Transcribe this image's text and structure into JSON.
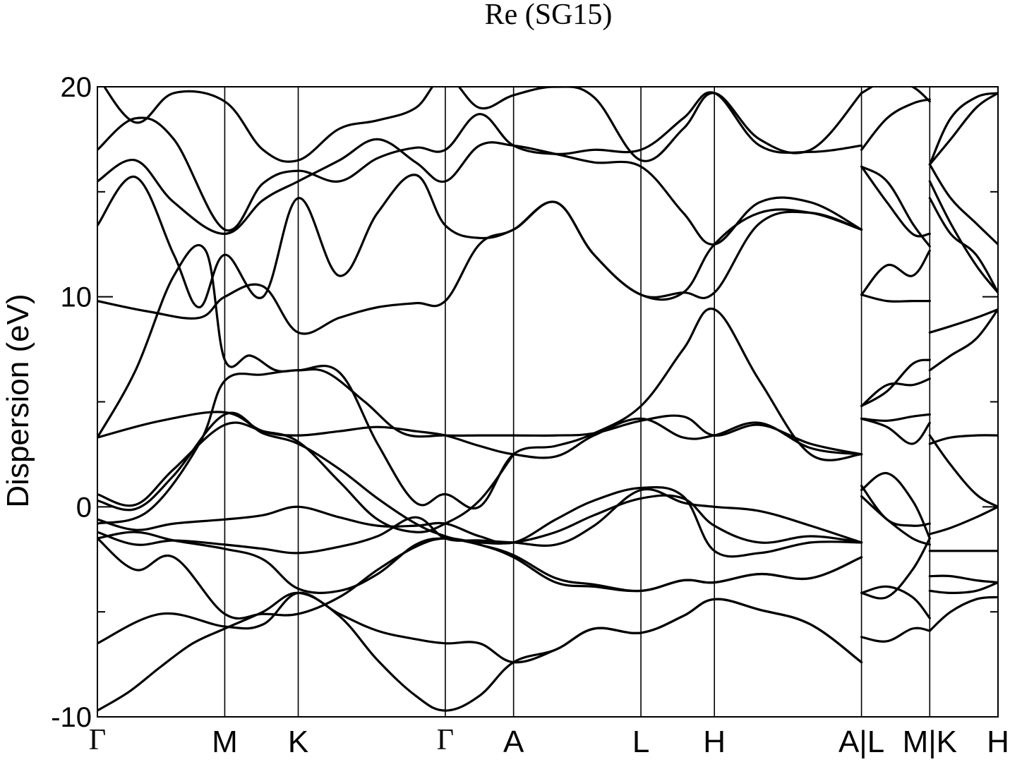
{
  "chart_data": {
    "type": "line",
    "title": "Re (SG15)",
    "ylabel": "Dispersion (eV)",
    "xlabel": "",
    "ylim": [
      -10,
      20
    ],
    "y_ticks": [
      -10,
      0,
      10,
      20
    ],
    "y_minor_ticks": [
      -5,
      5,
      15
    ],
    "grid": false,
    "legend": "none",
    "kpath": [
      {
        "label": "Γ",
        "x": 0.0
      },
      {
        "label": "M",
        "x": 1.0
      },
      {
        "label": "K",
        "x": 1.577
      },
      {
        "label": "Γ",
        "x": 2.732
      },
      {
        "label": "A",
        "x": 3.268
      },
      {
        "label": "L",
        "x": 4.268
      },
      {
        "label": "H",
        "x": 4.845
      },
      {
        "label": "A|L",
        "x": 6.0
      },
      {
        "label": "M|K",
        "x": 6.536
      },
      {
        "label": "H",
        "x": 7.072
      }
    ],
    "xlim": [
      0,
      7.072
    ],
    "series": [
      {
        "x": [
          0,
          0.25,
          0.5,
          0.75,
          1.0,
          1.3,
          1.577,
          1.9,
          2.2,
          2.5,
          2.732,
          3.0,
          3.268,
          3.6,
          3.9,
          4.268,
          4.6,
          4.845,
          5.2,
          5.6,
          6.0
        ],
        "values": [
          -9.7,
          -8.8,
          -7.6,
          -6.5,
          -5.8,
          -5.0,
          -4.1,
          -5.2,
          -7.3,
          -9.0,
          -9.7,
          -9.0,
          -7.4,
          -6.8,
          -5.8,
          -6.0,
          -5.2,
          -4.4,
          -4.9,
          -5.6,
          -7.4
        ]
      },
      {
        "x": [
          0,
          0.5,
          1.0,
          1.3,
          1.577,
          1.9,
          2.2,
          2.5,
          2.732,
          3.0,
          3.268,
          3.6,
          3.9,
          4.268,
          4.6,
          4.845,
          5.2,
          5.6,
          6.0
        ],
        "values": [
          -6.5,
          -5.1,
          -5.7,
          -5.6,
          -4.1,
          -5.1,
          -5.9,
          -6.3,
          -6.5,
          -6.5,
          -7.4,
          -6.8,
          -5.8,
          -6.0,
          -5.2,
          -4.4,
          -4.9,
          -5.6,
          -7.4
        ]
      },
      {
        "x": [
          0,
          0.3,
          0.6,
          1.0,
          1.3,
          1.577,
          1.9,
          2.2,
          2.5,
          2.732,
          3.0,
          3.268,
          3.6,
          3.9,
          4.268,
          4.6,
          4.845,
          5.2,
          5.6,
          6.0
        ],
        "values": [
          -1.5,
          -3.0,
          -2.4,
          -5.1,
          -5.1,
          -5.1,
          -4.3,
          -3.0,
          -1.9,
          -1.5,
          -1.8,
          -2.4,
          -3.6,
          -3.8,
          -4.0,
          -3.5,
          -3.6,
          -3.2,
          -3.4,
          -2.4
        ]
      },
      {
        "x": [
          0,
          0.3,
          0.6,
          1.0,
          1.3,
          1.577,
          1.9,
          2.2,
          2.5,
          2.732,
          3.0,
          3.268,
          3.6,
          3.9,
          4.268,
          4.6,
          4.845,
          5.2,
          5.6,
          6.0
        ],
        "values": [
          -1.5,
          -1.2,
          -1.6,
          -2.0,
          -2.5,
          -3.9,
          -4.0,
          -3.2,
          -1.8,
          -1.5,
          -1.7,
          -1.7,
          -1.2,
          -0.4,
          0.4,
          0.4,
          -0.9,
          -1.7,
          -1.4,
          -1.7
        ]
      },
      {
        "x": [
          0,
          0.3,
          0.6,
          1.0,
          1.3,
          1.577,
          1.9,
          2.2,
          2.5,
          2.732,
          3.0,
          3.268,
          3.6,
          3.9,
          4.268,
          4.6,
          4.845,
          5.2,
          5.6,
          6.0
        ],
        "values": [
          -1.2,
          -1.8,
          -1.6,
          -1.8,
          -2.0,
          -2.2,
          -1.9,
          -1.4,
          -0.5,
          -1.5,
          -1.6,
          -1.7,
          -1.8,
          -0.9,
          0.8,
          0.2,
          0.0,
          -0.2,
          -0.9,
          -1.7
        ]
      },
      {
        "x": [
          0,
          0.3,
          0.6,
          1.0,
          1.3,
          1.577,
          1.9,
          2.2,
          2.5,
          2.732,
          3.0,
          3.268,
          3.6,
          3.9,
          4.268,
          4.6,
          4.845,
          5.2,
          5.6,
          6.0
        ],
        "values": [
          -0.6,
          -1.1,
          -0.8,
          -0.6,
          -0.4,
          0.0,
          -0.5,
          -0.9,
          -0.9,
          -0.8,
          -1.4,
          -1.7,
          -0.6,
          0.3,
          0.9,
          0.5,
          -2.1,
          -2.2,
          -1.7,
          -1.7
        ]
      },
      {
        "x": [
          0,
          0.3,
          0.6,
          1.0,
          1.3,
          1.577,
          1.9,
          2.2,
          2.5,
          2.732,
          3.0,
          3.268,
          3.6,
          3.9,
          4.268,
          4.6,
          4.845,
          5.2,
          5.6,
          6.0
        ],
        "values": [
          0.3,
          -0.1,
          1.5,
          4.4,
          3.5,
          3.0,
          1.8,
          0.4,
          -0.8,
          -1.4,
          -1.8,
          -2.3,
          -3.4,
          -3.7,
          -4.0,
          -3.5,
          -3.6,
          -3.2,
          -3.4,
          -2.4
        ]
      },
      {
        "x": [
          0,
          0.3,
          0.6,
          1.0,
          1.3,
          1.577,
          1.9,
          2.2,
          2.5,
          2.732,
          3.0,
          3.268
        ],
        "values": [
          0.6,
          0.1,
          1.8,
          3.9,
          3.6,
          3.1,
          1.2,
          -0.6,
          -1.2,
          -0.8,
          0.3,
          2.5
        ]
      },
      {
        "x": [
          0,
          0.5,
          1.0,
          1.3,
          1.577,
          1.9,
          2.2,
          2.5,
          2.732,
          3.0,
          3.268,
          3.6,
          3.9,
          4.268,
          4.6,
          4.845,
          5.2,
          5.6,
          6.0
        ],
        "values": [
          3.3,
          4.1,
          4.5,
          3.6,
          3.4,
          3.6,
          3.8,
          3.6,
          3.4,
          2.9,
          2.5,
          2.4,
          3.4,
          4.2,
          3.3,
          3.4,
          4.0,
          2.8,
          2.5
        ]
      },
      {
        "x": [
          0,
          0.4,
          0.8,
          1.0,
          1.3,
          1.577,
          1.9,
          2.2,
          2.5,
          2.732,
          3.0,
          3.268,
          3.6,
          3.9,
          4.268,
          4.6,
          4.845,
          5.2,
          5.6,
          6.0
        ],
        "values": [
          -0.8,
          -0.2,
          3.0,
          6.0,
          6.3,
          6.5,
          6.4,
          3.0,
          0.2,
          0.6,
          0.0,
          2.5,
          2.9,
          3.5,
          4.8,
          7.5,
          9.4,
          6.0,
          2.5,
          2.5
        ]
      },
      {
        "x": [
          0,
          0.3,
          0.6,
          0.85,
          1.0,
          1.2,
          1.4,
          1.577,
          1.8,
          2.1,
          2.4,
          2.732,
          3.0,
          3.268,
          3.6,
          3.9,
          4.268,
          4.6,
          4.845,
          5.2,
          5.6,
          6.0
        ],
        "values": [
          3.3,
          6.5,
          11.0,
          12.2,
          7.0,
          7.2,
          6.5,
          6.5,
          6.4,
          5.0,
          3.5,
          3.4,
          3.4,
          3.4,
          3.4,
          3.5,
          4.1,
          4.3,
          3.4,
          3.9,
          3.0,
          2.5
        ]
      },
      {
        "x": [
          0,
          0.4,
          0.8,
          1.0,
          1.3,
          1.577,
          1.9,
          2.2,
          2.5,
          2.732,
          3.0,
          3.268,
          3.6,
          3.9,
          4.268,
          4.6,
          4.845,
          5.2,
          5.6,
          6.0
        ],
        "values": [
          9.8,
          9.3,
          9.0,
          10.0,
          10.5,
          8.3,
          9.0,
          9.5,
          9.7,
          9.8,
          12.5,
          13.2,
          14.5,
          12.0,
          10.1,
          10.2,
          10.2,
          13.5,
          14.0,
          13.2
        ]
      },
      {
        "x": [
          0,
          0.3,
          0.6,
          0.8,
          1.0,
          1.3,
          1.577,
          1.9,
          2.2,
          2.5,
          2.732,
          3.0,
          3.268,
          3.6,
          3.9,
          4.268,
          4.6,
          4.845,
          5.2,
          5.6,
          6.0
        ],
        "values": [
          13.4,
          15.7,
          12.0,
          9.5,
          12.0,
          10.0,
          14.7,
          11.0,
          14.0,
          15.8,
          13.4,
          12.8,
          13.2,
          14.5,
          12.0,
          10.1,
          10.2,
          12.5,
          14.0,
          14.0,
          13.2
        ]
      },
      {
        "x": [
          0,
          0.3,
          0.6,
          1.0,
          1.3,
          1.577,
          1.9,
          2.2,
          2.5,
          2.732,
          3.0,
          3.268,
          3.6,
          3.9,
          4.268,
          4.6,
          4.845,
          5.2,
          5.6,
          6.0
        ],
        "values": [
          15.5,
          16.5,
          14.5,
          13.0,
          14.6,
          15.5,
          16.5,
          17.5,
          16.4,
          15.5,
          17.2,
          17.2,
          16.8,
          16.4,
          16.2,
          14.0,
          12.5,
          14.5,
          14.5,
          13.2
        ]
      },
      {
        "x": [
          0,
          0.3,
          0.6,
          1.0,
          1.3,
          1.577,
          1.9,
          2.2,
          2.5,
          2.732,
          3.0,
          3.268,
          3.6,
          3.9,
          4.268,
          4.6,
          4.845,
          5.2,
          5.6,
          6.0
        ],
        "values": [
          17.0,
          18.5,
          17.5,
          13.2,
          15.4,
          16.0,
          15.5,
          16.6,
          17.1,
          17.0,
          18.7,
          17.2,
          16.8,
          17.0,
          17.0,
          18.5,
          19.7,
          17.2,
          16.9,
          17.2
        ]
      },
      {
        "x": [
          0,
          0.3,
          0.6,
          1.0,
          1.3,
          1.577,
          1.9,
          2.2,
          2.5,
          2.732,
          3.0,
          3.268,
          3.6,
          3.9,
          4.268,
          4.6,
          4.845,
          5.2,
          5.6,
          6.0
        ],
        "values": [
          20.5,
          18.3,
          19.7,
          19.3,
          17.0,
          16.5,
          18.0,
          18.4,
          19.0,
          20.5,
          19.0,
          19.6,
          20.0,
          19.5,
          16.5,
          18.0,
          19.7,
          17.5,
          17.0,
          19.7
        ]
      },
      {
        "x": [
          6.0,
          6.2,
          6.4,
          6.536
        ],
        "values": [
          -6.2,
          -6.4,
          -5.8,
          -5.9
        ]
      },
      {
        "x": [
          6.0,
          6.2,
          6.4,
          6.536
        ],
        "values": [
          -4.1,
          -3.8,
          -4.3,
          -5.3
        ]
      },
      {
        "x": [
          6.0,
          6.2,
          6.4,
          6.536
        ],
        "values": [
          -4.1,
          -4.3,
          -3.0,
          -1.5
        ]
      },
      {
        "x": [
          6.0,
          6.2,
          6.4,
          6.536
        ],
        "values": [
          0.5,
          -0.6,
          -1.5,
          -1.8
        ]
      },
      {
        "x": [
          6.0,
          6.2,
          6.4,
          6.536
        ],
        "values": [
          1.0,
          -0.6,
          -0.9,
          -0.8
        ]
      },
      {
        "x": [
          6.0,
          6.2,
          6.4,
          6.536
        ],
        "values": [
          0.8,
          1.6,
          0.3,
          -1.5
        ]
      },
      {
        "x": [
          6.0,
          6.2,
          6.4,
          6.536
        ],
        "values": [
          4.2,
          4.1,
          4.3,
          4.4
        ]
      },
      {
        "x": [
          6.0,
          6.2,
          6.4,
          6.536
        ],
        "values": [
          4.2,
          3.8,
          3.0,
          4.0
        ]
      },
      {
        "x": [
          6.0,
          6.2,
          6.4,
          6.536
        ],
        "values": [
          4.8,
          5.5,
          6.8,
          7.0
        ]
      },
      {
        "x": [
          6.0,
          6.2,
          6.4,
          6.536
        ],
        "values": [
          4.8,
          5.8,
          5.8,
          6.1
        ]
      },
      {
        "x": [
          6.0,
          6.2,
          6.4,
          6.536
        ],
        "values": [
          10.1,
          9.8,
          9.8,
          9.8
        ]
      },
      {
        "x": [
          6.0,
          6.2,
          6.4,
          6.536
        ],
        "values": [
          10.1,
          11.5,
          11.0,
          12.2
        ]
      },
      {
        "x": [
          6.0,
          6.2,
          6.4,
          6.536
        ],
        "values": [
          16.2,
          15.5,
          13.5,
          12.4
        ]
      },
      {
        "x": [
          6.0,
          6.2,
          6.4,
          6.536
        ],
        "values": [
          16.2,
          14.5,
          13.0,
          13.0
        ]
      },
      {
        "x": [
          6.0,
          6.2,
          6.4,
          6.536
        ],
        "values": [
          17.0,
          18.5,
          19.2,
          19.4
        ]
      },
      {
        "x": [
          6.0,
          6.2,
          6.4,
          6.536
        ],
        "values": [
          19.7,
          20.3,
          20.0,
          19.3
        ]
      },
      {
        "x": [
          6.536,
          6.7,
          6.9,
          7.072
        ],
        "values": [
          -5.9,
          -5.0,
          -4.4,
          -4.3
        ]
      },
      {
        "x": [
          6.536,
          6.7,
          6.9,
          7.072
        ],
        "values": [
          -4.0,
          -4.1,
          -4.0,
          -3.6
        ]
      },
      {
        "x": [
          6.536,
          6.7,
          6.9,
          7.072
        ],
        "values": [
          -3.3,
          -3.3,
          -3.5,
          -3.6
        ]
      },
      {
        "x": [
          6.536,
          6.7,
          6.9,
          7.072
        ],
        "values": [
          -2.1,
          -2.1,
          -2.1,
          -2.1
        ]
      },
      {
        "x": [
          6.536,
          6.7,
          6.9,
          7.072
        ],
        "values": [
          -1.3,
          -1.0,
          -0.5,
          0.0
        ]
      },
      {
        "x": [
          6.536,
          6.7,
          6.9,
          7.072
        ],
        "values": [
          3.4,
          2.0,
          0.6,
          0.0
        ]
      },
      {
        "x": [
          6.536,
          6.7,
          6.9,
          7.072
        ],
        "values": [
          3.0,
          3.3,
          3.4,
          3.4
        ]
      },
      {
        "x": [
          6.536,
          6.7,
          6.9,
          7.072
        ],
        "values": [
          6.5,
          7.2,
          8.0,
          9.4
        ]
      },
      {
        "x": [
          6.536,
          6.7,
          6.9,
          7.072
        ],
        "values": [
          8.3,
          8.6,
          9.0,
          9.4
        ]
      },
      {
        "x": [
          6.536,
          6.7,
          6.9,
          7.072
        ],
        "values": [
          14.7,
          13.0,
          12.0,
          10.2
        ]
      },
      {
        "x": [
          6.536,
          6.7,
          6.9,
          7.072
        ],
        "values": [
          15.5,
          13.5,
          11.5,
          10.2
        ]
      },
      {
        "x": [
          6.536,
          6.7,
          6.9,
          7.072
        ],
        "values": [
          16.3,
          14.7,
          13.5,
          12.5
        ]
      },
      {
        "x": [
          6.536,
          6.7,
          6.9,
          7.072
        ],
        "values": [
          16.3,
          17.5,
          19.0,
          19.7
        ]
      },
      {
        "x": [
          6.536,
          6.7,
          6.9,
          7.072
        ],
        "values": [
          16.3,
          18.5,
          19.5,
          19.7
        ]
      }
    ]
  }
}
